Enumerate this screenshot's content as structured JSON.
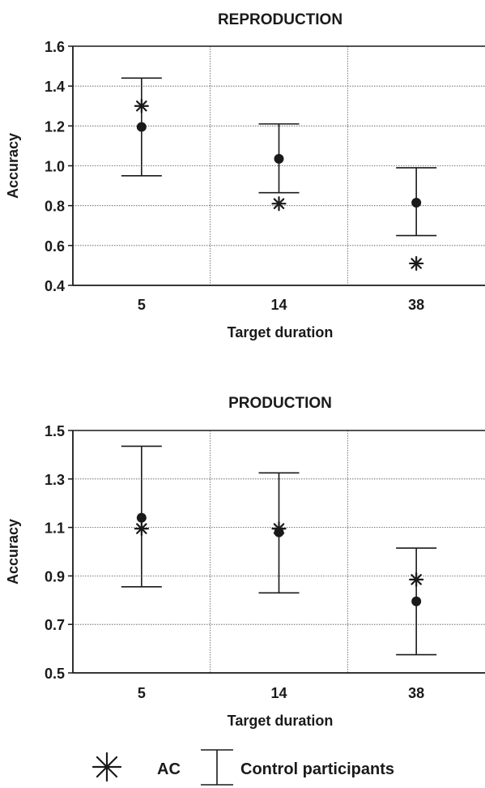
{
  "chart_data": [
    {
      "type": "scatter",
      "title": "REPRODUCTION",
      "xlabel": "Target duration",
      "ylabel": "Accuracy",
      "categories": [
        "5",
        "14",
        "38"
      ],
      "ylim": [
        0.4,
        1.6
      ],
      "yticks": [
        "0.4",
        "0.6",
        "0.8",
        "1.0",
        "1.2",
        "1.4",
        "1.6"
      ],
      "grid": true,
      "series": [
        {
          "name": "AC",
          "marker": "asterisk",
          "values": [
            1.3,
            0.81,
            0.51
          ]
        },
        {
          "name": "Control participants",
          "marker": "dot-errorbar",
          "values": [
            1.195,
            1.035,
            0.815
          ],
          "lower": [
            0.95,
            0.865,
            0.65
          ],
          "upper": [
            1.44,
            1.21,
            0.99
          ]
        }
      ]
    },
    {
      "type": "scatter",
      "title": "PRODUCTION",
      "xlabel": "Target duration",
      "ylabel": "Accuracy",
      "categories": [
        "5",
        "14",
        "38"
      ],
      "ylim": [
        0.5,
        1.5
      ],
      "yticks": [
        "0.5",
        "0.7",
        "0.9",
        "1.1",
        "1.3",
        "1.5"
      ],
      "grid": true,
      "series": [
        {
          "name": "AC",
          "marker": "asterisk",
          "values": [
            1.095,
            1.095,
            0.885
          ]
        },
        {
          "name": "Control participants",
          "marker": "dot-errorbar",
          "values": [
            1.14,
            1.08,
            0.795
          ],
          "lower": [
            0.855,
            0.83,
            0.575
          ],
          "upper": [
            1.435,
            1.325,
            1.015
          ]
        }
      ]
    }
  ],
  "legend": {
    "items": [
      "AC",
      "Control participants"
    ],
    "position": "bottom"
  },
  "colors": {
    "marks": "#1a1a1a",
    "grid": "#555555",
    "background": "#ffffff"
  }
}
